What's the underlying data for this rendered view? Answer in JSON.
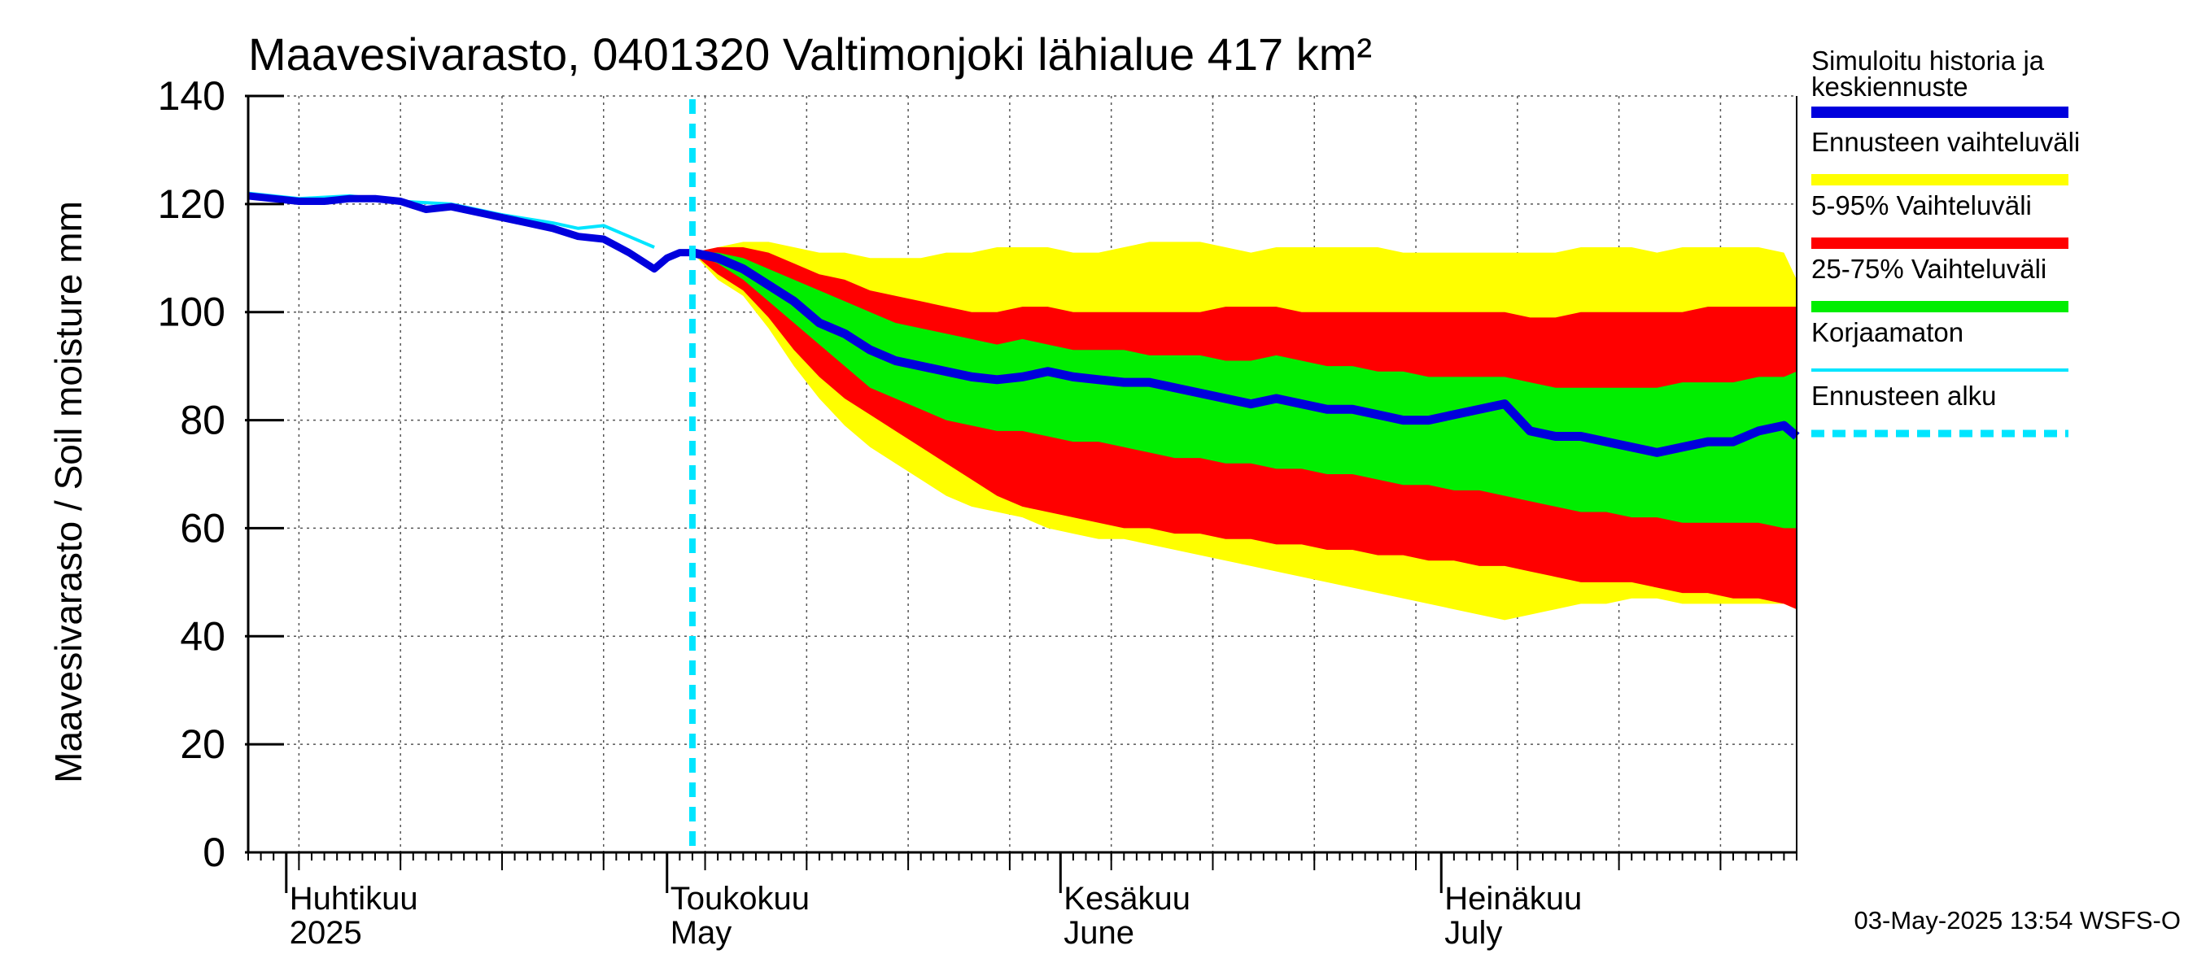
{
  "chart_data": {
    "type": "area",
    "title": "Maavesivarasto, 0401320 Valtimonjoki lähialue 417 km²",
    "ylabel": "Maavesivarasto / Soil moisture   mm",
    "ylim": [
      0,
      140
    ],
    "yticks": [
      0,
      20,
      40,
      60,
      80,
      100,
      120,
      140
    ],
    "x_start": "2025-03-29",
    "x_end": "2025-07-29",
    "forecast_start": "2025-05-03",
    "months": [
      {
        "date": "2025-04-01",
        "label1": "Huhtikuu",
        "label2": "2025"
      },
      {
        "date": "2025-05-01",
        "label1": "Toukokuu",
        "label2": "May"
      },
      {
        "date": "2025-06-01",
        "label1": "Kesäkuu",
        "label2": "June"
      },
      {
        "date": "2025-07-01",
        "label1": "Heinäkuu",
        "label2": "July"
      }
    ],
    "history_days": [
      0,
      2,
      4,
      6,
      8,
      10,
      12,
      14,
      16,
      18,
      20,
      22,
      24,
      26,
      28,
      30,
      32,
      33,
      34,
      35
    ],
    "history_values": [
      121.5,
      121,
      120.5,
      120.5,
      121,
      121,
      120.5,
      119,
      119.5,
      118.5,
      117.5,
      116.5,
      115.5,
      114,
      113.5,
      111,
      108,
      110,
      111,
      111
    ],
    "uncorrected_days": [
      0,
      4,
      8,
      12,
      16,
      20,
      24,
      26,
      28,
      30,
      32
    ],
    "uncorrected_values": [
      122,
      121,
      121.5,
      120.5,
      120,
      118,
      116.5,
      115.5,
      116,
      114,
      112
    ],
    "forecast_days": [
      35,
      37,
      39,
      41,
      43,
      45,
      47,
      49,
      51,
      53,
      55,
      57,
      59,
      61,
      63,
      65,
      67,
      69,
      71,
      73,
      75,
      77,
      79,
      81,
      83,
      85,
      87,
      89,
      91,
      93,
      95,
      97,
      99,
      101,
      103,
      105,
      107,
      109,
      111,
      113,
      115,
      117,
      119,
      121,
      122
    ],
    "median": [
      111,
      110,
      108,
      105,
      102,
      98,
      96,
      93,
      91,
      90,
      89,
      88,
      87.5,
      88,
      89,
      88,
      87.5,
      87,
      87,
      86,
      85,
      84,
      83,
      84,
      83,
      82,
      82,
      81,
      80,
      80,
      81,
      82,
      83,
      78,
      77,
      77,
      76,
      75,
      74,
      75,
      76,
      76,
      78,
      79,
      77
    ],
    "p25": [
      111,
      109,
      106,
      102,
      98,
      94,
      90,
      86,
      84,
      82,
      80,
      79,
      78,
      78,
      77,
      76,
      76,
      75,
      74,
      73,
      73,
      72,
      72,
      71,
      71,
      70,
      70,
      69,
      68,
      68,
      67,
      67,
      66,
      65,
      64,
      63,
      63,
      62,
      62,
      61,
      61,
      61,
      61,
      60,
      60
    ],
    "p75": [
      111,
      111,
      110,
      108,
      106,
      104,
      102,
      100,
      98,
      97,
      96,
      95,
      94,
      95,
      94,
      93,
      93,
      93,
      92,
      92,
      92,
      91,
      91,
      92,
      91,
      90,
      90,
      89,
      89,
      88,
      88,
      88,
      88,
      87,
      86,
      86,
      86,
      86,
      86,
      87,
      87,
      87,
      88,
      88,
      89
    ],
    "p05": [
      111,
      107,
      104,
      99,
      93,
      88,
      84,
      81,
      78,
      75,
      72,
      69,
      66,
      64,
      63,
      62,
      61,
      60,
      60,
      59,
      59,
      58,
      58,
      57,
      57,
      56,
      56,
      55,
      55,
      54,
      54,
      53,
      53,
      52,
      51,
      50,
      50,
      50,
      49,
      48,
      48,
      47,
      47,
      46,
      45
    ],
    "p95": [
      111,
      112,
      112,
      111,
      109,
      107,
      106,
      104,
      103,
      102,
      101,
      100,
      100,
      101,
      101,
      100,
      100,
      100,
      100,
      100,
      100,
      101,
      101,
      101,
      100,
      100,
      100,
      100,
      100,
      100,
      100,
      100,
      100,
      99,
      99,
      100,
      100,
      100,
      100,
      100,
      101,
      101,
      101,
      101,
      101
    ],
    "ymin_band": [
      111,
      106,
      103,
      97,
      90,
      84,
      79,
      75,
      72,
      69,
      66,
      64,
      63,
      62,
      60,
      59,
      58,
      58,
      57,
      56,
      55,
      54,
      53,
      52,
      51,
      50,
      49,
      48,
      47,
      46,
      45,
      44,
      43,
      44,
      45,
      46,
      46,
      47,
      47,
      46,
      46,
      46,
      46,
      46,
      45
    ],
    "ymax_band": [
      111,
      112,
      113,
      113,
      112,
      111,
      111,
      110,
      110,
      110,
      111,
      111,
      112,
      112,
      112,
      111,
      111,
      112,
      113,
      113,
      113,
      112,
      111,
      112,
      112,
      112,
      112,
      112,
      111,
      111,
      111,
      111,
      111,
      111,
      111,
      112,
      112,
      112,
      111,
      112,
      112,
      112,
      112,
      111,
      106
    ],
    "legend": [
      {
        "label": "Simuloitu historia ja",
        "label2": "keskiennuste",
        "color": "#0000dd",
        "style": "thick"
      },
      {
        "label": "Ennusteen vaihteluväli",
        "label2": "",
        "color": "#ffff00",
        "style": "thick"
      },
      {
        "label": "5-95% Vaihteluväli",
        "label2": "",
        "color": "#ff0000",
        "style": "thick"
      },
      {
        "label": "25-75% Vaihteluväli",
        "label2": "",
        "color": "#00ee00",
        "style": "thick"
      },
      {
        "label": "Korjaamaton",
        "label2": "",
        "color": "#00e5ff",
        "style": "thin"
      },
      {
        "label": "Ennusteen alku",
        "label2": "",
        "color": "#00e5ff",
        "style": "dashed"
      }
    ],
    "footer": "03-May-2025 13:54 WSFS-O"
  }
}
